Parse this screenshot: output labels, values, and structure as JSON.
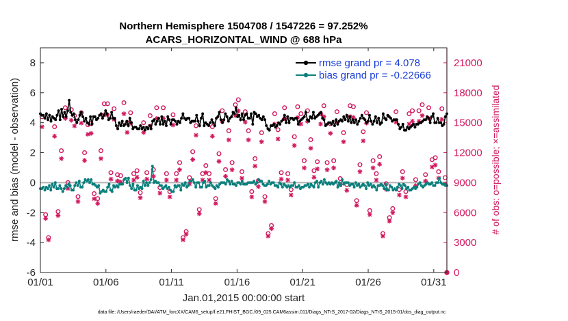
{
  "chart_data": {
    "type": "line",
    "title_line1": "Northern Hemisphere 1504708 / 1547226 = 97.252%",
    "title_line2": "ACARS_HORIZONTAL_WIND @ 688 hPa",
    "ylabel_left": "rmse and bias (model - observation)",
    "ylabel_right": "# of obs: o=possible; ×=assimilated",
    "xlabel": "Jan.01,2015 00:00:00 start",
    "footnote": "data file: /Users/raeder/DAI/ATM_forcXX/CAM6_setup/f.e21.FHIST_BGC.f09_025.CAM6assim.011/Diags_NTrS_2017-02/Diags_NTrS_2015-01/obs_diag_output.nc",
    "x_ticks": [
      "01/01",
      "01/06",
      "01/11",
      "01/16",
      "01/21",
      "01/26",
      "01/31"
    ],
    "x_tick_days": [
      1,
      6,
      11,
      16,
      21,
      26,
      31
    ],
    "xlim_days": [
      1,
      32
    ],
    "ylim_left": [
      -6,
      9
    ],
    "y_ticks_left": [
      "-6",
      "-4",
      "-2",
      "0",
      "2",
      "4",
      "6",
      "8"
    ],
    "ylim_right": [
      0,
      22500
    ],
    "y_ticks_right": [
      "0",
      "3000",
      "6000",
      "9000",
      "12000",
      "15000",
      "18000",
      "21000"
    ],
    "colors": {
      "rmse": "#000000",
      "bias": "#0a7f7c",
      "obs": "#d1185e",
      "legend_text": "#1a3cd6",
      "zero_line": "#b3b3b3"
    },
    "series": [
      {
        "name": "rmse grand pr = 4.078",
        "key": "rmse",
        "values": [
          4.6,
          4.5,
          4.5,
          4.3,
          4.6,
          4.2,
          4.5,
          4.1,
          4.4,
          4.3,
          4.2,
          4.5,
          4.8,
          4.2,
          4.9,
          4.4,
          4.7,
          4.4,
          4.8,
          5.5,
          4.7,
          4.5,
          4.6,
          4.2,
          4.0,
          4.2,
          4.5,
          4.7,
          4.4,
          4.1,
          4.3,
          4.0,
          3.9,
          4.4,
          3.9,
          4.4,
          4.4,
          4.2,
          4.3,
          4.5,
          4.6,
          4.3,
          4.5,
          4.8,
          4.6,
          4.2,
          4.3,
          4.7,
          4.3,
          4.3,
          3.8,
          3.6,
          4.0,
          3.8,
          4.1,
          3.8,
          3.9,
          4.1,
          3.8,
          4.3,
          4.0,
          3.6,
          3.7,
          3.7,
          3.6,
          3.6,
          3.8,
          3.6,
          3.7,
          3.5,
          3.7,
          3.6,
          3.8,
          3.6,
          4.1,
          4.2,
          3.9,
          4.1,
          4.3,
          3.9,
          4.4,
          3.9,
          4.1,
          3.8,
          4.4,
          4.2,
          3.9,
          4.2,
          4.2,
          4.1,
          3.9,
          4.1,
          4.0,
          4.3,
          4.6,
          4.3,
          4.2,
          4.3,
          4.3,
          4.0,
          4.1,
          4.1,
          4.1,
          4.5,
          4.1,
          3.8,
          4.3,
          4.6,
          3.8,
          4.0,
          3.9,
          3.8,
          4.0,
          4.2,
          4.0,
          3.8,
          4.3,
          4.4,
          4.7,
          4.2,
          4.0,
          4.2,
          4.6,
          4.4,
          4.1,
          4.3,
          4.4,
          4.7,
          4.6,
          5.0,
          4.4,
          4.5,
          4.2,
          4.6,
          4.2,
          4.5,
          4.6,
          4.3,
          4.3,
          4.6,
          3.9,
          4.7,
          4.6,
          4.4,
          4.5,
          4.3,
          4.2,
          4.4,
          4.2,
          3.8,
          3.6,
          3.5,
          3.8,
          3.8,
          3.9,
          3.7,
          3.8,
          4.0,
          3.9,
          4.1,
          4.2,
          4.5,
          4.0,
          4.4,
          4.0,
          4.3,
          4.3,
          4.2,
          4.3,
          4.3,
          3.9,
          4.1,
          4.2,
          4.3,
          4.4,
          4.7,
          4.2,
          4.1,
          4.4,
          4.3,
          4.7,
          4.3,
          4.4,
          4.5,
          4.6,
          4.7,
          4.3,
          4.2,
          3.8,
          3.9,
          4.0,
          4.0,
          3.9,
          4.1,
          3.8,
          4.2,
          3.9,
          4.1,
          4.2,
          4.1,
          4.4,
          4.2,
          4.5,
          4.1,
          4.4,
          4.0,
          4.2,
          4.0,
          4.2,
          3.9,
          4.1,
          4.3,
          4.5,
          4.3,
          4.2,
          4.0,
          4.1,
          4.5,
          4.1,
          3.9,
          4.1,
          4.4,
          4.0,
          4.3,
          3.9,
          4.0,
          4.6,
          4.3,
          4.2,
          4.5,
          4.4,
          4.3,
          4.1,
          4.2,
          4.2,
          4.2,
          3.9,
          3.6,
          3.7,
          3.9,
          3.5,
          3.5,
          3.7,
          3.6,
          3.7,
          3.8,
          3.9,
          3.7,
          3.9,
          3.9,
          4.0,
          4.0,
          4.1,
          4.2,
          4.2,
          4.4,
          4.3,
          4.0,
          4.4,
          4.6,
          4.0,
          4.0,
          4.3,
          4.0,
          4.0,
          3.8,
          3.9,
          4.4,
          4.6
        ]
      },
      {
        "name": "bias grand pr = -0.22666",
        "key": "bias",
        "values": [
          -0.4,
          -0.4,
          -0.3,
          -0.5,
          -0.3,
          -0.4,
          -0.2,
          -0.5,
          -0.1,
          -0.3,
          0.0,
          -0.4,
          -0.4,
          -0.2,
          -0.4,
          -0.6,
          -0.4,
          -0.2,
          -0.3,
          -0.1,
          -0.2,
          -0.5,
          -0.5,
          -0.2,
          0.0,
          -0.2,
          0.1,
          -0.3,
          -0.3,
          0.0,
          0.2,
          0.1,
          0.2,
          0.0,
          0.2,
          -0.1,
          -0.1,
          -0.2,
          -0.3,
          -0.2,
          -0.7,
          -0.6,
          -0.5,
          -0.6,
          -0.6,
          -0.3,
          -0.1,
          -0.5,
          -0.6,
          -0.2,
          -0.3,
          -0.2,
          -0.3,
          -0.1,
          -0.1,
          -0.1,
          0.2,
          0.3,
          0.0,
          0.3,
          -0.2,
          -0.4,
          -0.1,
          -0.5,
          -0.5,
          -0.2,
          -0.4,
          -0.3,
          -0.4,
          0.1,
          -0.2,
          0.0,
          -0.2,
          0.0,
          0.2,
          1.1,
          0.0,
          0.1,
          0.0,
          0.0,
          -0.2,
          -0.2,
          -0.4,
          -0.3,
          -0.2,
          -0.4,
          -0.3,
          -0.5,
          -0.6,
          -0.6,
          -0.2,
          -0.3,
          -0.2,
          -0.2,
          -0.5,
          -0.1,
          -0.2,
          0.0,
          -0.3,
          -0.2,
          0.1,
          0.1,
          0.2,
          0.0,
          -0.3,
          0.0,
          0.0,
          -0.3,
          -0.3,
          0.0,
          0.1,
          -0.3,
          -0.2,
          -0.2,
          0.0,
          -0.2,
          -0.3,
          -0.4,
          -0.2,
          -0.3,
          -0.1,
          0.0,
          0.0,
          0.0,
          -0.1,
          0.2,
          0.1,
          -0.1,
          0.1,
          -0.1,
          -0.1,
          -0.2,
          0.0,
          0.0,
          -0.1,
          0.1,
          -0.1,
          -0.1,
          -0.1,
          0.0,
          0.0,
          0.0,
          0.0,
          0.1,
          -0.1,
          0.0,
          0.2,
          0.1,
          0.1,
          -0.1,
          -0.2,
          -0.2,
          -0.1,
          0.1,
          -0.1,
          0.0,
          0.0,
          -0.2,
          -0.2,
          -0.3,
          0.0,
          -0.1,
          -0.3,
          -0.1,
          -0.2,
          -0.3,
          -0.2,
          -0.3,
          -0.2,
          -0.2,
          0.0,
          -0.3,
          -0.3,
          -0.2,
          -0.4,
          -0.3,
          -0.3,
          -0.2,
          -0.2,
          -0.1,
          -0.3,
          -0.1,
          -0.2,
          -0.3,
          0.0,
          0.1,
          -0.3,
          0.0,
          0.1,
          -0.1,
          0.2,
          0.0,
          -0.1,
          0.0,
          -0.1,
          0.0,
          -0.1,
          0.0,
          0.1,
          -0.3,
          0.0,
          -0.2,
          0.2,
          -0.1,
          0.0,
          0.0,
          0.0,
          -0.2,
          -0.1,
          -0.1,
          -0.3,
          0.0,
          -0.2,
          -0.1,
          -0.3,
          -0.2,
          -0.1,
          -0.2,
          -0.4,
          0.0,
          -0.2,
          -0.1,
          -0.3,
          -0.2,
          -0.3,
          -0.5,
          -0.2,
          -0.2,
          -0.1,
          -0.2,
          -0.4,
          -0.1,
          -0.5,
          -0.5,
          -0.2,
          -0.3,
          -0.5,
          -0.4,
          -0.5,
          -0.3,
          -0.1,
          -0.2,
          -0.4,
          -0.1,
          -0.2,
          -0.4,
          -0.3,
          -0.5,
          -0.5,
          -0.4,
          -0.3,
          -0.4,
          -0.3,
          -0.1,
          0.0,
          -0.2,
          -0.3,
          -0.2,
          -0.1,
          0.0,
          -0.1,
          -0.1,
          0.0,
          -0.2,
          -0.2,
          0.0,
          0.0,
          0.3,
          0.0,
          -0.1,
          -0.1,
          -0.2,
          -0.2
        ]
      }
    ],
    "obs_possible_days": [
      1.12,
      1.4,
      1.62,
      2.08,
      2.35,
      2.6,
      2.9,
      3.1,
      3.36,
      3.6,
      3.87,
      4.12,
      4.37,
      4.62,
      4.87,
      5.1,
      5.37,
      5.62,
      5.87,
      6.12,
      6.38,
      6.62,
      6.88,
      7.12,
      7.37,
      7.62,
      7.88,
      8.12,
      8.37,
      8.62,
      8.87,
      9.12,
      9.37,
      9.62,
      9.87,
      10.12,
      10.37,
      10.62,
      10.87,
      11.12,
      11.37,
      11.62,
      11.88,
      12.12,
      12.37,
      12.62,
      12.87,
      13.12,
      13.37,
      13.62,
      13.87,
      14.12,
      14.37,
      14.62,
      14.87,
      15.12,
      15.37,
      15.62,
      15.87,
      16.1,
      16.37,
      16.62,
      16.87,
      17.12,
      17.37,
      17.62,
      17.87,
      18.12,
      18.37,
      18.62,
      18.87,
      19.12,
      19.37,
      19.62,
      19.87,
      20.12,
      20.37,
      20.62,
      20.87,
      21.12,
      21.37,
      21.62,
      21.87,
      22.12,
      22.37,
      22.62,
      22.87,
      23.12,
      23.37,
      23.62,
      23.87,
      24.12,
      24.37,
      24.62,
      24.87,
      25.12,
      25.37,
      25.62,
      25.87,
      26.12,
      26.37,
      26.62,
      26.87,
      27.12,
      27.37,
      27.62,
      27.87,
      28.12,
      28.37,
      28.62,
      28.87,
      29.12,
      29.37,
      29.62,
      29.87,
      30.12,
      30.37,
      30.62,
      30.87,
      31.12,
      31.37,
      31.62,
      31.87
    ],
    "obs_possible": [
      15600,
      5800,
      3500,
      14600,
      6100,
      12200,
      16500,
      9000,
      16300,
      15700,
      7600,
      16000,
      12000,
      14800,
      14900,
      7900,
      7400,
      12200,
      16900,
      16900,
      10000,
      16400,
      9800,
      9700,
      17000,
      15000,
      16000,
      9900,
      10200,
      8000,
      15000,
      10000,
      15700,
      10300,
      16500,
      8500,
      16500,
      9900,
      8100,
      15800,
      9900,
      11000,
      3500,
      4100,
      9500,
      12100,
      14700,
      6300,
      9900,
      10700,
      9900,
      14600,
      7400,
      11900,
      16200,
      10300,
      14200,
      11000,
      16800,
      17300,
      10100,
      16100,
      14200,
      8100,
      11400,
      9200,
      14000,
      7600,
      3900,
      4700,
      15900,
      14300,
      10000,
      16500,
      9900,
      8300,
      13600,
      16600,
      15900,
      11200,
      16200,
      13300,
      10200,
      11100,
      15900,
      16700,
      11000,
      14900,
      11200,
      16100,
      9400,
      14000,
      8800,
      16700,
      16600,
      7200,
      10800,
      14100,
      16000,
      6200,
      11200,
      9900,
      11600,
      3900,
      8900,
      5500,
      6400,
      16100,
      8300,
      10100,
      8100,
      15900,
      16200,
      9300,
      16200,
      16800,
      9800,
      16500,
      11300,
      11500,
      10100,
      16400,
      9500,
      8300,
      14300
    ]
  },
  "legend_entries": [
    "rmse grand pr = 4.078",
    "bias grand pr = -0.22666"
  ]
}
